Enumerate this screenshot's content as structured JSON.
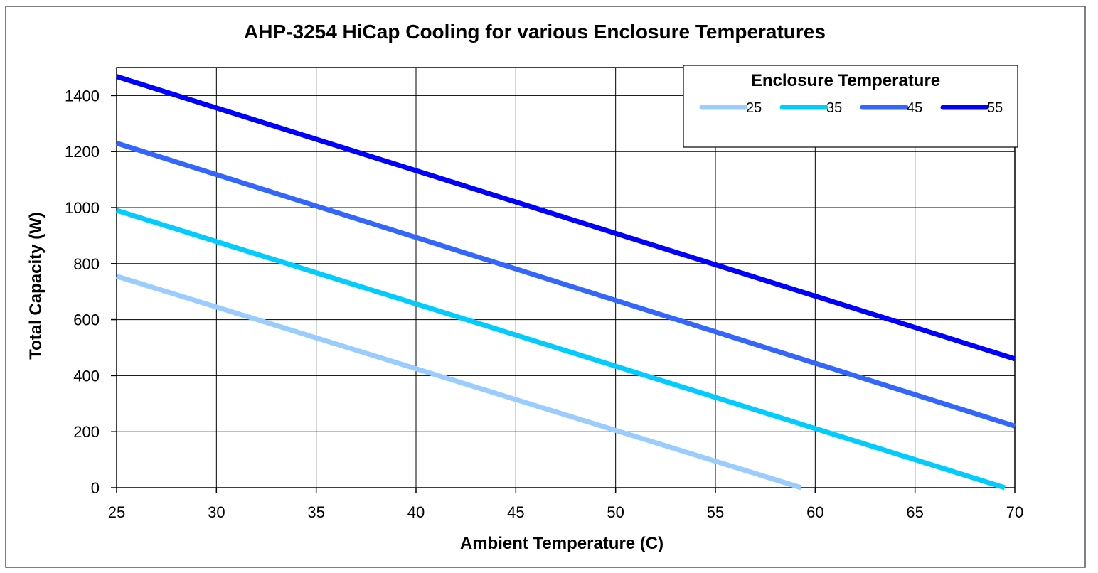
{
  "chart_data": {
    "type": "line",
    "title": "AHP-3254 HiCap Cooling for various Enclosure Temperatures",
    "xlabel": "Ambient Temperature (C)",
    "ylabel": "Total Capacity (W)",
    "xlim": [
      25,
      70
    ],
    "ylim": [
      0,
      1500
    ],
    "x_ticks": [
      25,
      30,
      35,
      40,
      45,
      50,
      55,
      60,
      65,
      70
    ],
    "y_ticks": [
      0,
      200,
      400,
      600,
      800,
      1000,
      1200,
      1400
    ],
    "grid": true,
    "legend": {
      "title": "Enclosure Temperature",
      "position": "top-right"
    },
    "series": [
      {
        "name": "25",
        "color": "#99ccff",
        "x": [
          25,
          59.3
        ],
        "y": [
          755,
          0
        ]
      },
      {
        "name": "35",
        "color": "#00ccff",
        "x": [
          25,
          69.5
        ],
        "y": [
          990,
          0
        ]
      },
      {
        "name": "45",
        "color": "#3366ff",
        "x": [
          25,
          70
        ],
        "y": [
          1230,
          220
        ]
      },
      {
        "name": "55",
        "color": "#0000ff",
        "x": [
          25,
          70
        ],
        "y": [
          1468,
          460
        ]
      }
    ]
  }
}
